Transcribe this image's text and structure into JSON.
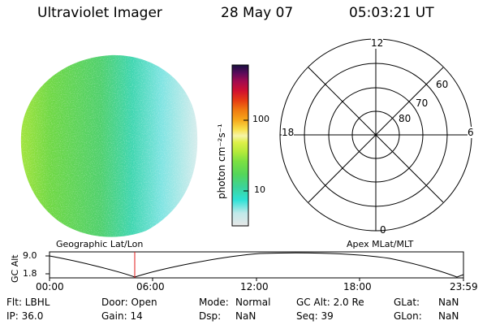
{
  "header": {
    "title": "Ultraviolet Imager",
    "date": "28 May 07",
    "time": "05:03:21 UT"
  },
  "colorbar": {
    "unit_label": "photon cm⁻²s⁻¹",
    "ticks": [
      "100",
      "10"
    ],
    "stops": [
      "#e8e8e8",
      "#bfe9ea",
      "#2fe2d6",
      "#3cd39a",
      "#54d65a",
      "#7be042",
      "#b4ea3a",
      "#dff04a",
      "#f6f4a8",
      "#f8e04a",
      "#f6a61a",
      "#f07a10",
      "#e63c12",
      "#d01030",
      "#a00a50",
      "#5a0a5a",
      "#181040"
    ]
  },
  "polar": {
    "mlt_labels": {
      "top": "12",
      "bottom": "0",
      "left": "18",
      "right": "6"
    },
    "lat_labels": [
      "80",
      "70",
      "60"
    ]
  },
  "timeline": {
    "ylabel": "GC Alt",
    "yticks": [
      "9.0",
      "1.8"
    ],
    "left_label": "Geographic Lat/Lon",
    "right_label": "Apex MLat/MLT",
    "xticks": [
      "00:00",
      "06:00",
      "12:00",
      "18:00",
      "23:59"
    ]
  },
  "info": {
    "flt": "Flt: LBHL",
    "ip": "IP: 36.0",
    "door": "Door: Open",
    "gain": "Gain: 14",
    "mode_label": "Mode:",
    "mode_value": "Normal",
    "dsp_label": "Dsp:",
    "dsp_value": "NaN",
    "gc_alt": "GC Alt: 2.0 Re",
    "seq": "Seq: 39",
    "glat_label": "GLat:",
    "glat_value": "NaN",
    "glon_label": "GLon:",
    "glon_value": "NaN"
  }
}
